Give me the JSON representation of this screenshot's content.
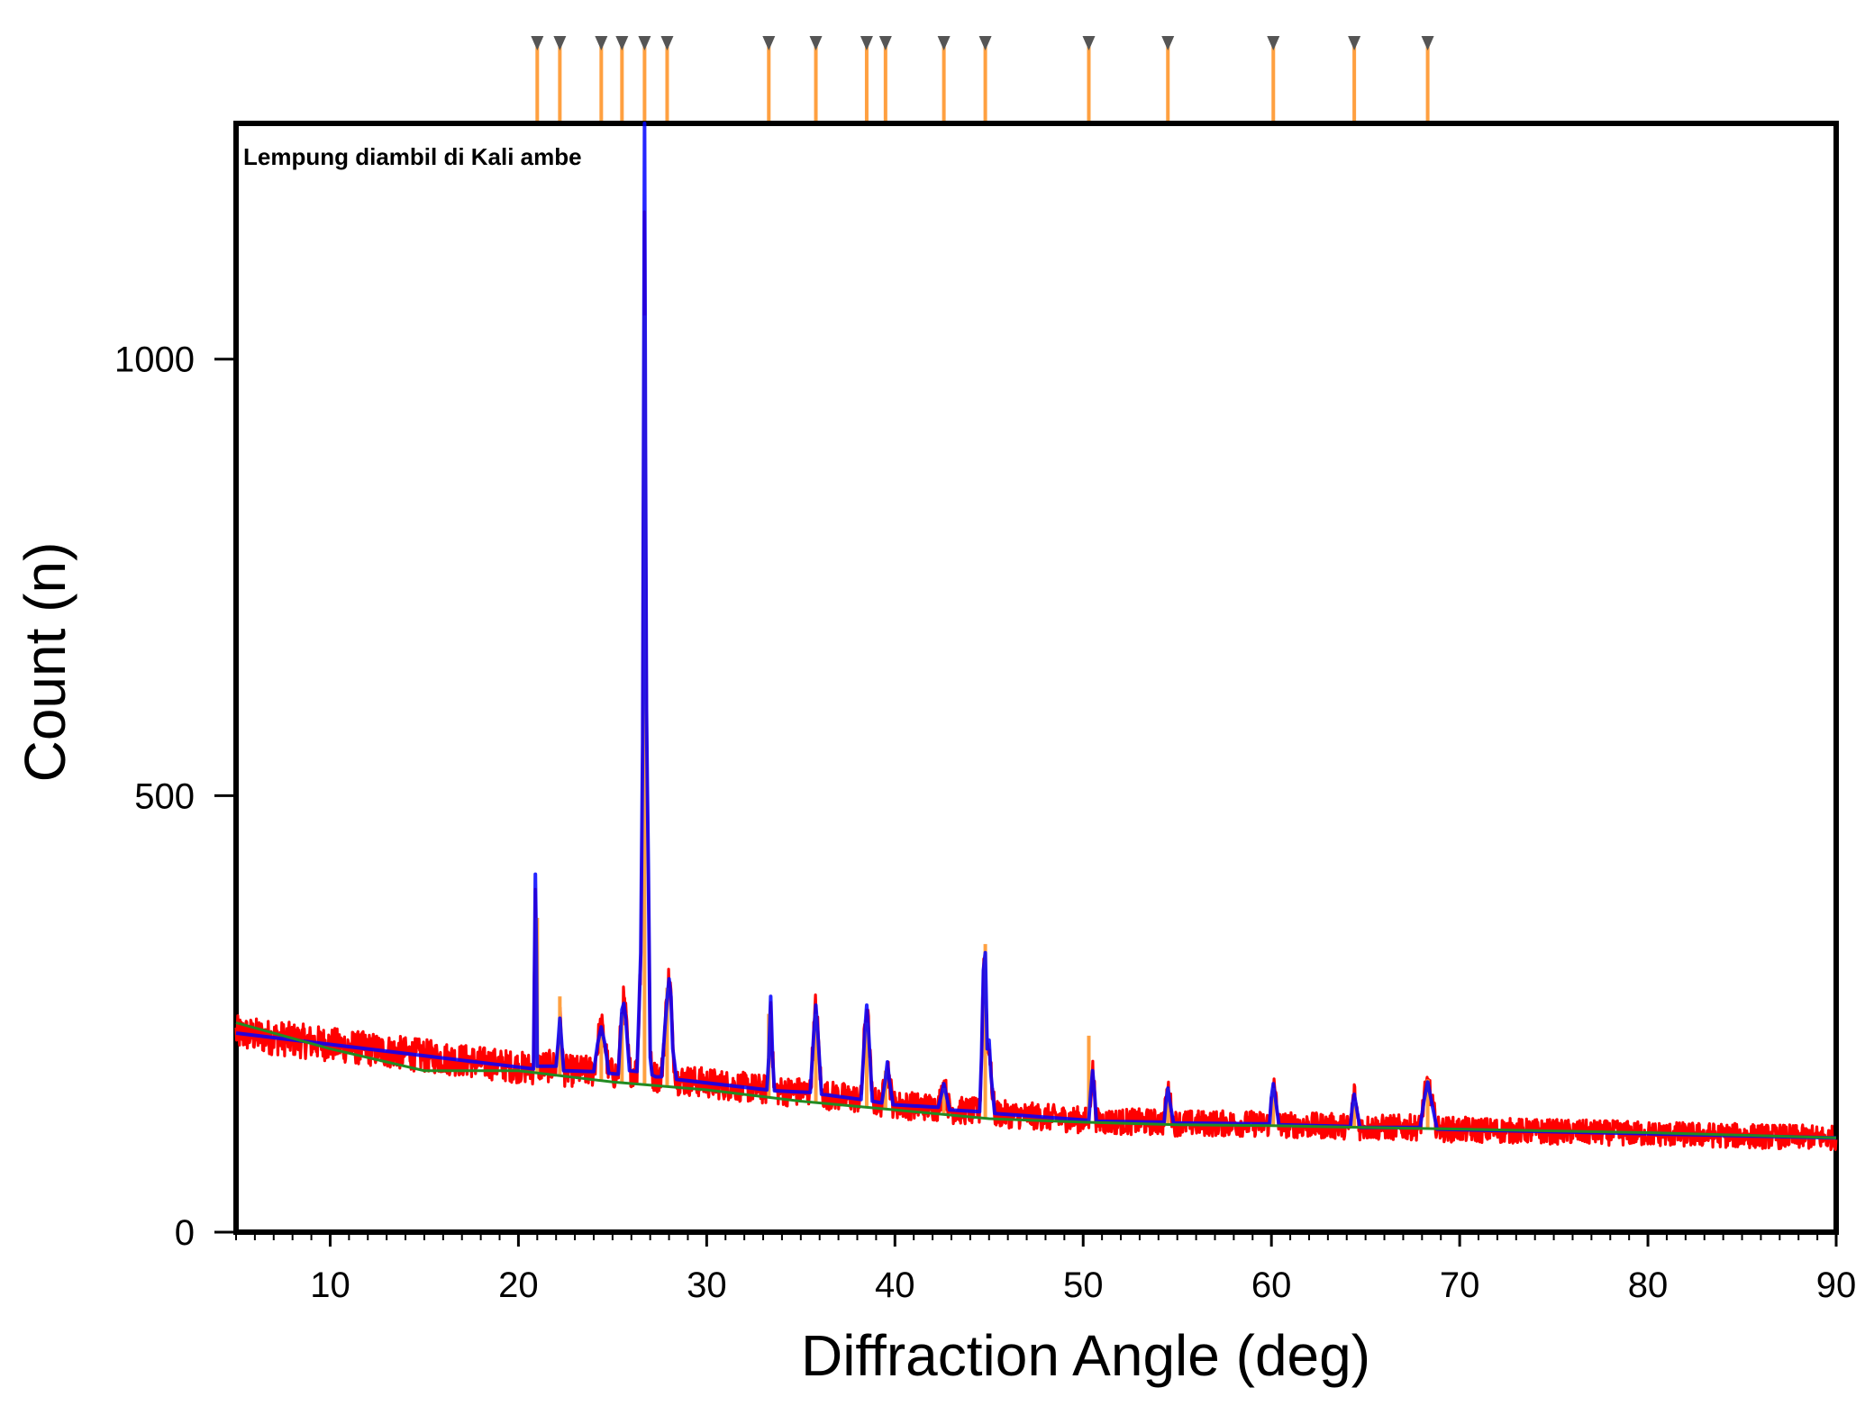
{
  "chart_data": {
    "type": "line",
    "title": "Lempung diambil di Kali ambe",
    "xlabel": "Diffraction Angle (deg)",
    "ylabel": "Count (n)",
    "xlim": [
      5,
      90
    ],
    "ylim": [
      0,
      1270
    ],
    "x_ticks": [
      10,
      20,
      30,
      40,
      50,
      60,
      70,
      80,
      90
    ],
    "y_ticks": [
      0,
      500,
      1000
    ],
    "grid": false,
    "colors": {
      "observed": "#ff0000",
      "calculated": "#0000ff",
      "background": "#228b22",
      "reflections": "#ffa040",
      "markers": "#555555"
    },
    "series": [
      {
        "name": "background",
        "x": [
          5,
          10,
          15,
          20,
          25,
          30,
          35,
          40,
          45,
          50,
          55,
          60,
          65,
          70,
          75,
          80,
          85,
          90
        ],
        "y": [
          240,
          210,
          185,
          185,
          172,
          163,
          150,
          140,
          130,
          126,
          123,
          122,
          120,
          118,
          116,
          114,
          111,
          108
        ]
      },
      {
        "name": "calculated",
        "x": [
          5,
          20.8,
          20.85,
          20.9,
          20.95,
          21.0,
          22.0,
          22.1,
          22.2,
          22.3,
          22.4,
          24.0,
          24.2,
          24.4,
          24.6,
          24.8,
          25.3,
          25.5,
          25.6,
          25.7,
          25.9,
          26.3,
          26.4,
          26.5,
          26.6,
          26.7,
          26.75,
          26.8,
          26.85,
          26.9,
          27.0,
          27.1,
          27.3,
          27.6,
          27.8,
          27.9,
          28.0,
          28.1,
          28.2,
          28.4,
          33.2,
          33.3,
          33.4,
          33.5,
          33.6,
          35.5,
          35.7,
          35.8,
          35.9,
          36.1,
          38.2,
          38.4,
          38.5,
          38.6,
          38.8,
          39.3,
          39.5,
          39.6,
          39.7,
          39.9,
          42.3,
          42.5,
          42.6,
          42.7,
          42.9,
          44.5,
          44.6,
          44.7,
          44.8,
          44.9,
          45.0,
          45.1,
          45.3,
          50.3,
          50.4,
          50.5,
          50.6,
          50.7,
          54.3,
          54.4,
          54.5,
          54.6,
          54.8,
          59.9,
          60.0,
          60.1,
          60.2,
          60.4,
          64.2,
          64.3,
          64.4,
          64.5,
          64.7,
          67.9,
          68.1,
          68.3,
          68.5,
          68.8,
          90
        ],
        "y": [
          228,
          187,
          300,
          410,
          320,
          190,
          190,
          215,
          245,
          215,
          185,
          184,
          215,
          235,
          215,
          182,
          181,
          255,
          262,
          245,
          185,
          184,
          250,
          320,
          560,
          1270,
          900,
          600,
          510,
          420,
          200,
          180,
          178,
          178,
          240,
          268,
          290,
          270,
          210,
          175,
          163,
          200,
          270,
          200,
          162,
          160,
          230,
          260,
          230,
          158,
          152,
          230,
          260,
          230,
          150,
          148,
          175,
          195,
          175,
          146,
          143,
          160,
          170,
          160,
          140,
          138,
          200,
          300,
          320,
          210,
          220,
          180,
          136,
          128,
          160,
          185,
          160,
          127,
          126,
          150,
          165,
          150,
          125,
          124,
          155,
          170,
          155,
          123,
          121,
          145,
          158,
          145,
          120,
          120,
          150,
          172,
          150,
          118,
          108
        ]
      }
    ],
    "reflections": [
      21.0,
      22.2,
      24.4,
      25.5,
      26.7,
      27.9,
      33.3,
      35.8,
      38.5,
      39.5,
      42.6,
      44.8,
      50.3,
      54.5,
      60.1,
      64.4,
      68.3
    ],
    "reflection_heights": [
      360,
      270,
      225,
      250,
      1050,
      280,
      250,
      250,
      240,
      185,
      165,
      330,
      225,
      165,
      165,
      150,
      175
    ]
  }
}
